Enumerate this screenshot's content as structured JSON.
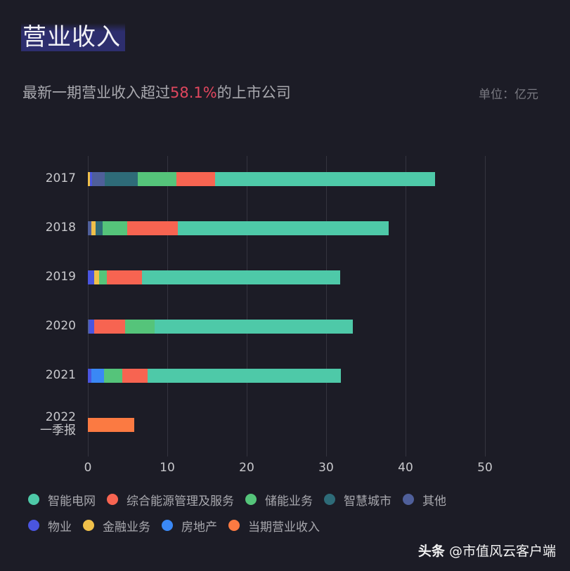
{
  "header": {
    "title": "营业收入",
    "subtitle_prefix": "最新一期营业收入超过",
    "subtitle_highlight": "58.1%",
    "subtitle_suffix": "的上市公司",
    "unit": "单位：亿元"
  },
  "watermark": {
    "platform": "头条",
    "account": "@市值风云客户端"
  },
  "colors": {
    "智能电网": "#4ec9a8",
    "综合能源管理及服务": "#f76451",
    "储能业务": "#55c47a",
    "智慧城市": "#2e6b78",
    "其他": "#4f5f9a",
    "物业": "#4a55e0",
    "金融业务": "#f0c04a",
    "房地产": "#3a88f5",
    "当期营业收入": "#fb7a42"
  },
  "chart_data": {
    "type": "bar",
    "orientation": "horizontal",
    "stacked": true,
    "title": "营业收入",
    "subtitle": "最新一期营业收入超过58.1%的上市公司",
    "unit": "亿元",
    "categories": [
      "2017",
      "2018",
      "2019",
      "2020",
      "2021",
      "2022 一季报"
    ],
    "xlim": [
      0,
      50
    ],
    "xticks": [
      0,
      10,
      20,
      30,
      40,
      50
    ],
    "grid": true,
    "legend_position": "bottom",
    "series": [
      {
        "name": "金融业务",
        "color": "#f0c04a",
        "values": [
          0.3,
          0.6,
          0.6,
          0.0,
          0.0,
          0
        ]
      },
      {
        "name": "物业",
        "color": "#4a55e0",
        "values": [
          0.25,
          0,
          0.8,
          0.6,
          0.4,
          0
        ]
      },
      {
        "name": "房地产",
        "color": "#3a88f5",
        "values": [
          0,
          0,
          0,
          0,
          1.6,
          0
        ]
      },
      {
        "name": "其他",
        "color": "#4f5f9a",
        "values": [
          1.6,
          0.4,
          0,
          0.2,
          0,
          0
        ]
      },
      {
        "name": "智慧城市",
        "color": "#2e6b78",
        "values": [
          4.1,
          0.9,
          0,
          0,
          0,
          0
        ]
      },
      {
        "name": "储能业务",
        "color": "#55c47a",
        "values": [
          4.9,
          3.1,
          1.0,
          3.7,
          2.3,
          0
        ]
      },
      {
        "name": "综合能源管理及服务",
        "color": "#f76451",
        "values": [
          4.9,
          6.3,
          4.4,
          3.9,
          3.2,
          0
        ]
      },
      {
        "name": "智能电网",
        "color": "#4ec9a8",
        "values": [
          27.7,
          26.6,
          25.0,
          25.0,
          24.4,
          0
        ]
      },
      {
        "name": "当期营业收入",
        "color": "#fb7a42",
        "values": [
          0,
          0,
          0,
          0,
          0,
          5.8
        ]
      }
    ],
    "totals": [
      43.7,
      37.9,
      31.9,
      33.4,
      31.9,
      5.8
    ],
    "bar_orders": [
      [
        "金融业务",
        "物业",
        "其他",
        "智慧城市",
        "储能业务",
        "综合能源管理及服务",
        "智能电网"
      ],
      [
        "其他",
        "金融业务",
        "智慧城市",
        "储能业务",
        "综合能源管理及服务",
        "智能电网"
      ],
      [
        "物业",
        "金融业务",
        "储能业务",
        "综合能源管理及服务",
        "智能电网"
      ],
      [
        "其他",
        "物业",
        "综合能源管理及服务",
        "储能业务",
        "智能电网"
      ],
      [
        "物业",
        "房地产",
        "储能业务",
        "综合能源管理及服务",
        "智能电网"
      ],
      [
        "当期营业收入"
      ]
    ]
  },
  "legend": {
    "row1": [
      "智能电网",
      "综合能源管理及服务",
      "储能业务",
      "智慧城市",
      "其他"
    ],
    "row2": [
      "物业",
      "金融业务",
      "房地产",
      "当期营业收入"
    ]
  },
  "y_labels": [
    {
      "line1": "2017",
      "line2": ""
    },
    {
      "line1": "2018",
      "line2": ""
    },
    {
      "line1": "2019",
      "line2": ""
    },
    {
      "line1": "2020",
      "line2": ""
    },
    {
      "line1": "2021",
      "line2": ""
    },
    {
      "line1": "2022",
      "line2": "一季报"
    }
  ]
}
